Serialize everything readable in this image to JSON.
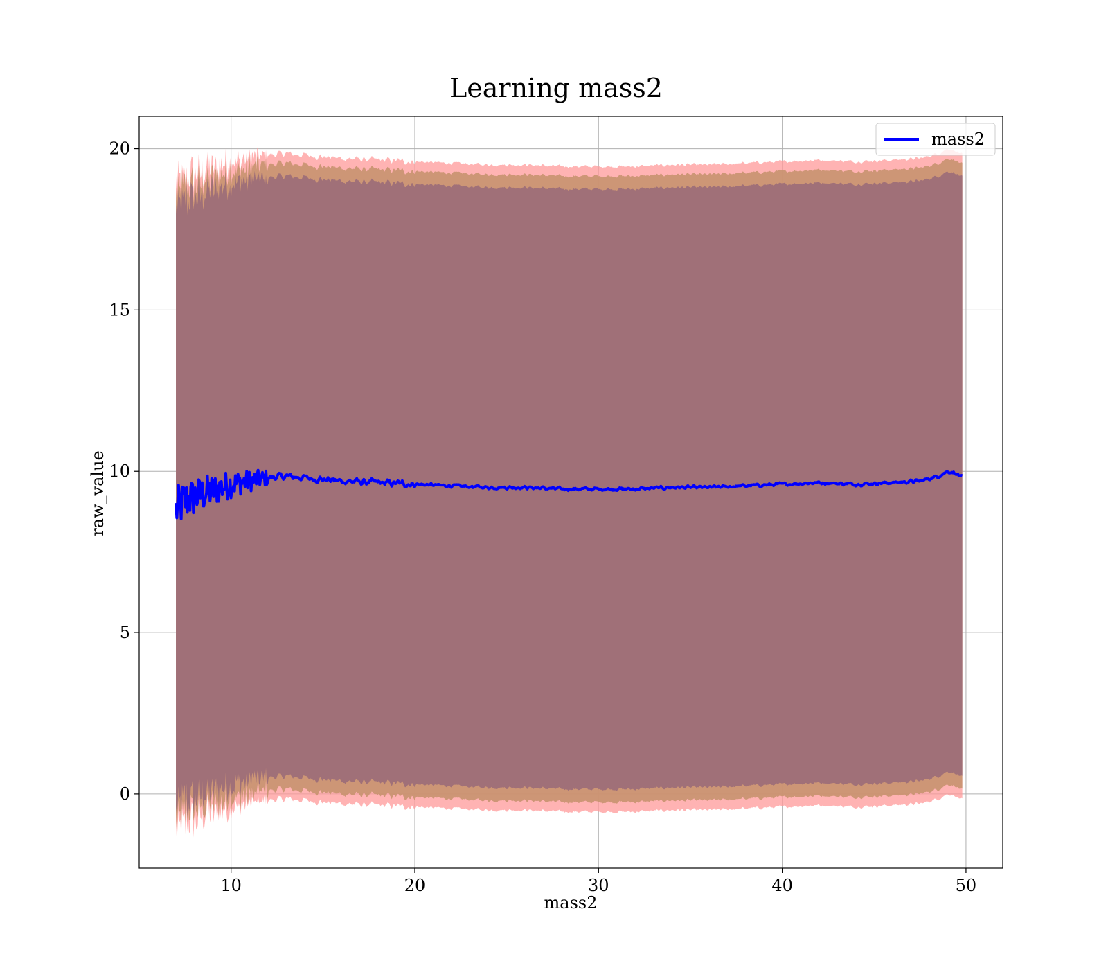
{
  "chart_data": {
    "type": "line",
    "title": "Learning mass2",
    "xlabel": "mass2",
    "ylabel": "raw_value",
    "xlim": [
      5,
      52
    ],
    "ylim": [
      -2.3,
      21
    ],
    "xticks": [
      10,
      20,
      30,
      40,
      50
    ],
    "yticks": [
      0,
      5,
      10,
      15,
      20
    ],
    "grid": true,
    "legend": {
      "position": "upper right",
      "entries": [
        "mass2"
      ]
    },
    "colors": {
      "line": "#0000ff",
      "outer_band": "#ff9999",
      "middle_band": "#c8926f",
      "inner_band": "#a07078"
    },
    "series": [
      {
        "name": "mass2",
        "x_start": 7.0,
        "x_end": 49.8,
        "keypoints": [
          [
            7.0,
            8.8
          ],
          [
            7.5,
            9.1
          ],
          [
            8.0,
            9.2
          ],
          [
            9.0,
            9.4
          ],
          [
            10.0,
            9.6
          ],
          [
            11.0,
            9.7
          ],
          [
            12.0,
            9.8
          ],
          [
            13.0,
            9.85
          ],
          [
            14.0,
            9.8
          ],
          [
            15.0,
            9.75
          ],
          [
            16.0,
            9.7
          ],
          [
            18.0,
            9.65
          ],
          [
            20.0,
            9.6
          ],
          [
            22.0,
            9.55
          ],
          [
            24.0,
            9.5
          ],
          [
            26.0,
            9.5
          ],
          [
            28.0,
            9.45
          ],
          [
            30.0,
            9.45
          ],
          [
            32.0,
            9.45
          ],
          [
            34.0,
            9.5
          ],
          [
            36.0,
            9.5
          ],
          [
            38.0,
            9.55
          ],
          [
            40.0,
            9.6
          ],
          [
            42.0,
            9.65
          ],
          [
            44.0,
            9.6
          ],
          [
            46.0,
            9.65
          ],
          [
            47.5,
            9.7
          ],
          [
            48.5,
            9.85
          ],
          [
            49.0,
            10.0
          ],
          [
            49.4,
            9.95
          ],
          [
            49.8,
            9.8
          ]
        ],
        "bands": [
          {
            "name": "outer",
            "offset": 10.0
          },
          {
            "name": "middle",
            "offset": 9.7
          },
          {
            "name": "inner",
            "offset": 9.3
          }
        ]
      }
    ]
  }
}
